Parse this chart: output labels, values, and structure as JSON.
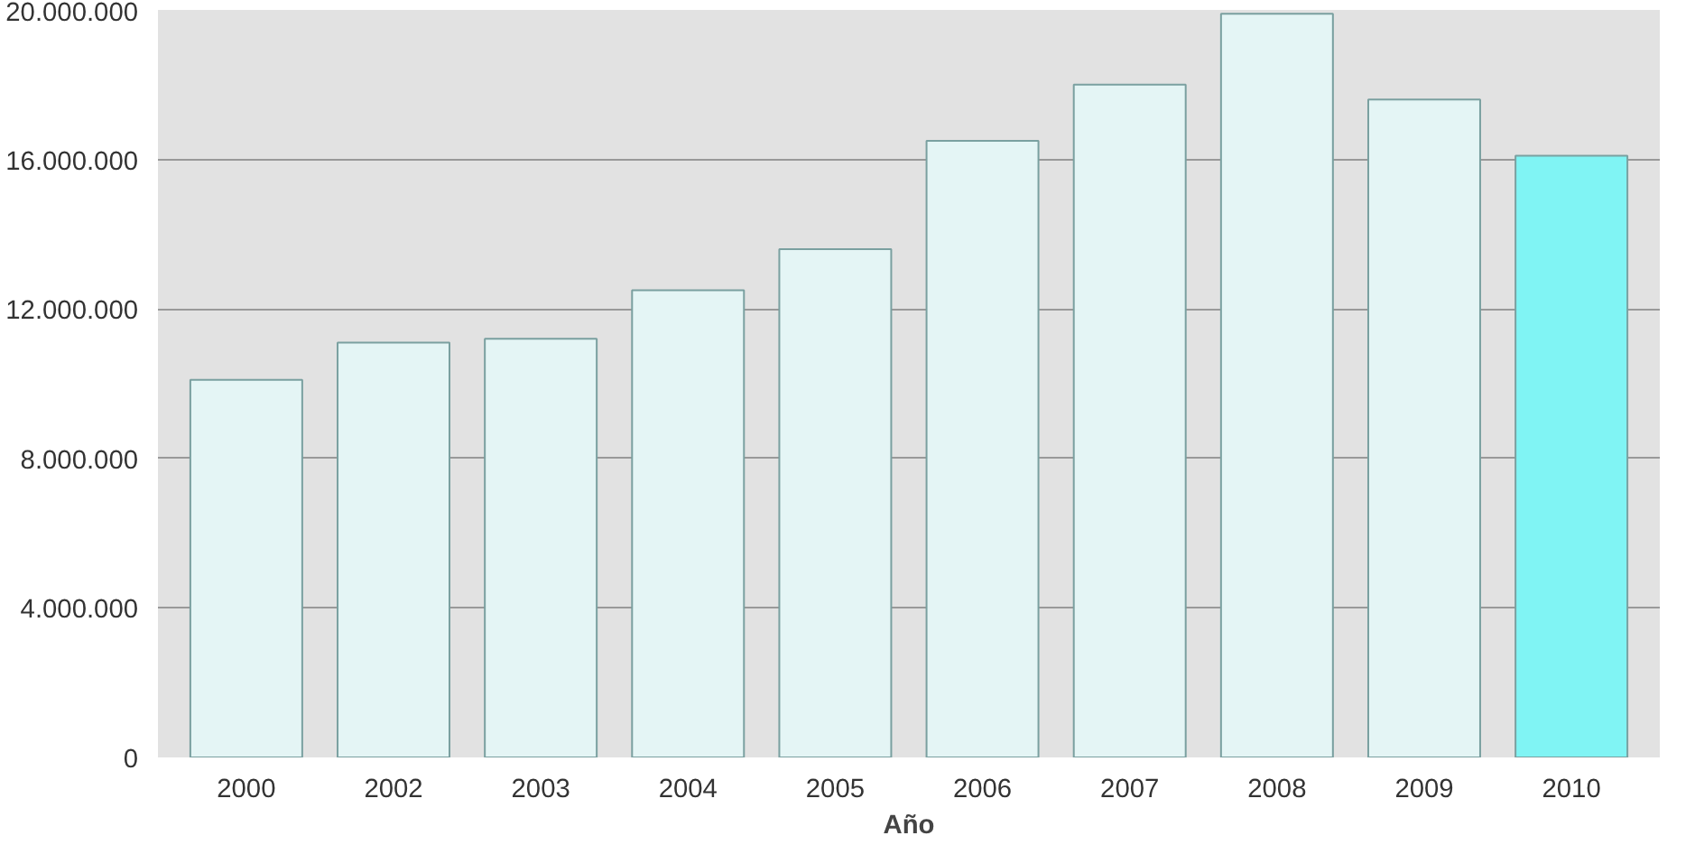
{
  "chart_data": {
    "type": "bar",
    "xlabel": "Año",
    "categories": [
      "2000",
      "2002",
      "2003",
      "2004",
      "2005",
      "2006",
      "2007",
      "2008",
      "2009",
      "2010"
    ],
    "values": [
      10100000,
      11100000,
      11200000,
      12500000,
      13600000,
      16500000,
      18000000,
      19900000,
      17600000,
      16100000
    ],
    "colors": [
      "#e4f5f5",
      "#e4f5f5",
      "#e4f5f5",
      "#e4f5f5",
      "#e4f5f5",
      "#e4f5f5",
      "#e4f5f5",
      "#e4f5f5",
      "#e4f5f5",
      "#80f4f4"
    ],
    "ylim": [
      0,
      20000000
    ],
    "yticks": [
      {
        "value": 0,
        "label": "0"
      },
      {
        "value": 4000000,
        "label": "4.000.000"
      },
      {
        "value": 8000000,
        "label": "8.000.000"
      },
      {
        "value": 12000000,
        "label": "12.000.000"
      },
      {
        "value": 16000000,
        "label": "16.000.000"
      },
      {
        "value": 20000000,
        "label": "20.000.000"
      }
    ],
    "grid": "y"
  }
}
